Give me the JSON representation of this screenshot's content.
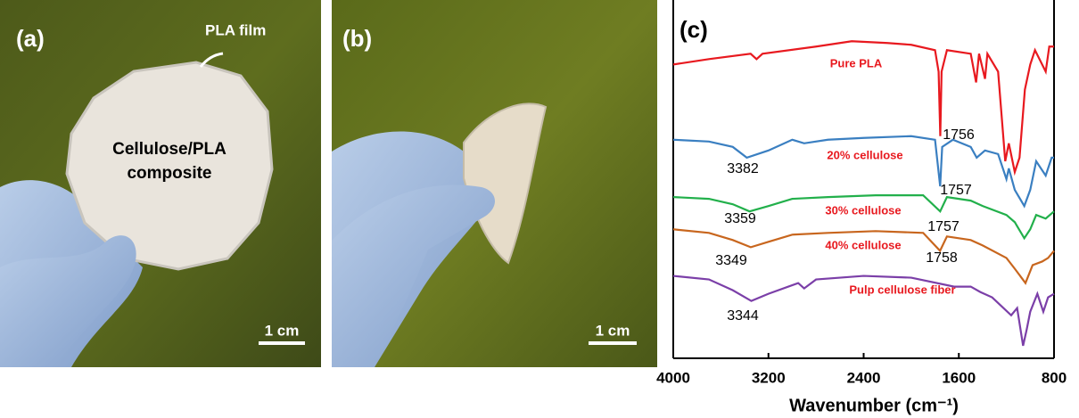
{
  "panels": {
    "a": {
      "label": "(a)",
      "film_label": "PLA film",
      "composite_label": [
        "Cellulose/PLA",
        "composite"
      ],
      "scale_bar": "1 cm"
    },
    "b": {
      "label": "(b)",
      "scale_bar": "1 cm"
    },
    "c": {
      "label": "(c)"
    }
  },
  "chart_data": {
    "type": "line",
    "x_label": "Wavenumber (cm⁻¹)",
    "xlim": [
      4000,
      800
    ],
    "xticks": [
      4000,
      3200,
      2400,
      1600,
      800
    ],
    "ylim": [
      0,
      100
    ],
    "series": [
      {
        "name": "Pure PLA",
        "color": "#e8191f",
        "x": [
          4000,
          3700,
          3350,
          3300,
          3250,
          2800,
          2500,
          2200,
          2000,
          1800,
          1770,
          1756,
          1745,
          1700,
          1500,
          1455,
          1430,
          1380,
          1360,
          1270,
          1210,
          1180,
          1130,
          1090,
          1045,
          1000,
          960,
          870,
          840,
          800
        ],
        "values": [
          82,
          83.5,
          85,
          83.5,
          85,
          87,
          88.5,
          88,
          87.5,
          86,
          80,
          62,
          80,
          86,
          85,
          77,
          85,
          78,
          85,
          80,
          55,
          60,
          52,
          56,
          75,
          82,
          86,
          80,
          87,
          87
        ]
      },
      {
        "name": "20% cellulose",
        "color": "#3a7fc1",
        "x": [
          4000,
          3700,
          3500,
          3382,
          3200,
          3000,
          2900,
          2700,
          2400,
          2000,
          1800,
          1757,
          1740,
          1650,
          1500,
          1450,
          1380,
          1270,
          1200,
          1180,
          1130,
          1050,
          1000,
          950,
          870,
          820,
          800
        ],
        "values": [
          61,
          60.5,
          59,
          56,
          58,
          61,
          60,
          61,
          61.5,
          62,
          61,
          48,
          59,
          61,
          59,
          56,
          58,
          57,
          50,
          53,
          47,
          42.5,
          47,
          55,
          51,
          56,
          56
        ]
      },
      {
        "name": "30% cellulose",
        "color": "#22b04b",
        "x": [
          4000,
          3700,
          3500,
          3359,
          3200,
          3000,
          2700,
          2300,
          1900,
          1757,
          1700,
          1500,
          1400,
          1200,
          1130,
          1050,
          1000,
          950,
          870,
          800
        ],
        "values": [
          45,
          44.5,
          43,
          41,
          42.5,
          44.5,
          45,
          45.5,
          45.5,
          41,
          45,
          44,
          42.5,
          40,
          38,
          33.5,
          36,
          40,
          39,
          41
        ]
      },
      {
        "name": "40% cellulose",
        "color": "#c8661e",
        "x": [
          4000,
          3700,
          3500,
          3349,
          3200,
          3000,
          2700,
          2300,
          1900,
          1758,
          1700,
          1500,
          1400,
          1200,
          1130,
          1040,
          980,
          900,
          850,
          800
        ],
        "values": [
          36,
          35,
          33,
          31,
          32.5,
          34.5,
          35,
          35.5,
          35,
          30,
          34,
          33,
          31.5,
          28,
          25,
          21,
          26,
          27,
          28,
          30
        ]
      },
      {
        "name": "Pulp cellulose fiber",
        "color": "#7b3fa8",
        "x": [
          4000,
          3700,
          3500,
          3344,
          3200,
          2950,
          2900,
          2800,
          2400,
          2000,
          1640,
          1500,
          1420,
          1320,
          1160,
          1110,
          1060,
          1030,
          1000,
          940,
          890,
          850,
          800
        ],
        "values": [
          23,
          22,
          19,
          16,
          18,
          21,
          19.5,
          22,
          23,
          22.5,
          20,
          20,
          18.5,
          17,
          12,
          14,
          3.5,
          8,
          13,
          18,
          13,
          17,
          18
        ]
      }
    ],
    "annotations": [
      "1756",
      "3382",
      "1757",
      "3359",
      "1757",
      "3349",
      "1758",
      "3344"
    ]
  }
}
